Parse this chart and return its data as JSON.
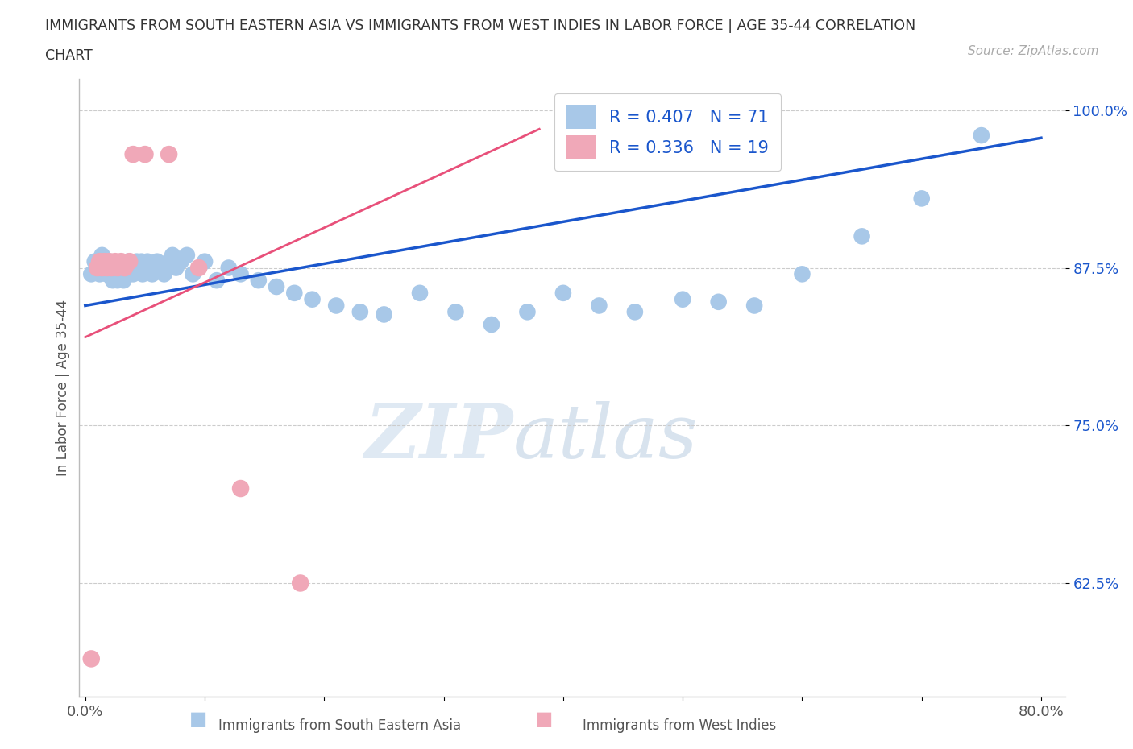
{
  "title_line1": "IMMIGRANTS FROM SOUTH EASTERN ASIA VS IMMIGRANTS FROM WEST INDIES IN LABOR FORCE | AGE 35-44 CORRELATION",
  "title_line2": "CHART",
  "source_text": "Source: ZipAtlas.com",
  "ylabel": "In Labor Force | Age 35-44",
  "xlim": [
    -0.005,
    0.82
  ],
  "ylim": [
    0.535,
    1.025
  ],
  "xtick_positions": [
    0.0,
    0.1,
    0.2,
    0.3,
    0.4,
    0.5,
    0.6,
    0.7,
    0.8
  ],
  "xticklabels": [
    "0.0%",
    "",
    "",
    "",
    "",
    "",
    "",
    "",
    "80.0%"
  ],
  "ytick_positions": [
    0.625,
    0.75,
    0.875,
    1.0
  ],
  "ytick_labels": [
    "62.5%",
    "75.0%",
    "87.5%",
    "100.0%"
  ],
  "blue_color": "#a8c8e8",
  "pink_color": "#f0a8b8",
  "blue_line_color": "#1a56cc",
  "pink_line_color": "#e8507a",
  "legend_text_color": "#1a56cc",
  "watermark_zip": "ZIP",
  "watermark_atlas": "atlas",
  "blue_x": [
    0.005,
    0.008,
    0.01,
    0.012,
    0.014,
    0.015,
    0.017,
    0.018,
    0.019,
    0.02,
    0.021,
    0.022,
    0.023,
    0.024,
    0.025,
    0.026,
    0.027,
    0.028,
    0.03,
    0.031,
    0.032,
    0.034,
    0.035,
    0.036,
    0.038,
    0.04,
    0.041,
    0.043,
    0.045,
    0.047,
    0.048,
    0.05,
    0.052,
    0.054,
    0.056,
    0.058,
    0.06,
    0.063,
    0.066,
    0.07,
    0.073,
    0.076,
    0.08,
    0.085,
    0.09,
    0.095,
    0.1,
    0.11,
    0.12,
    0.13,
    0.145,
    0.16,
    0.175,
    0.19,
    0.21,
    0.23,
    0.25,
    0.28,
    0.31,
    0.34,
    0.37,
    0.4,
    0.43,
    0.46,
    0.5,
    0.53,
    0.56,
    0.6,
    0.65,
    0.7,
    0.75
  ],
  "blue_y": [
    0.87,
    0.88,
    0.875,
    0.87,
    0.885,
    0.88,
    0.875,
    0.87,
    0.875,
    0.88,
    0.875,
    0.87,
    0.865,
    0.875,
    0.87,
    0.875,
    0.865,
    0.87,
    0.875,
    0.87,
    0.865,
    0.875,
    0.87,
    0.88,
    0.875,
    0.87,
    0.875,
    0.88,
    0.875,
    0.88,
    0.87,
    0.875,
    0.88,
    0.875,
    0.87,
    0.875,
    0.88,
    0.875,
    0.87,
    0.88,
    0.885,
    0.875,
    0.88,
    0.885,
    0.87,
    0.875,
    0.88,
    0.865,
    0.875,
    0.87,
    0.865,
    0.86,
    0.855,
    0.85,
    0.845,
    0.84,
    0.838,
    0.855,
    0.84,
    0.83,
    0.84,
    0.855,
    0.845,
    0.84,
    0.85,
    0.848,
    0.845,
    0.87,
    0.9,
    0.93,
    0.98
  ],
  "pink_x": [
    0.005,
    0.01,
    0.012,
    0.014,
    0.016,
    0.018,
    0.02,
    0.022,
    0.025,
    0.027,
    0.03,
    0.033,
    0.037,
    0.04,
    0.05,
    0.07,
    0.095,
    0.13,
    0.18
  ],
  "pink_y": [
    0.565,
    0.875,
    0.88,
    0.875,
    0.88,
    0.875,
    0.88,
    0.875,
    0.88,
    0.875,
    0.88,
    0.875,
    0.88,
    0.965,
    0.965,
    0.965,
    0.875,
    0.7,
    0.625
  ],
  "blue_line_x0": 0.0,
  "blue_line_x1": 0.8,
  "blue_line_y0": 0.845,
  "blue_line_y1": 0.978,
  "pink_line_x0": 0.0,
  "pink_line_x1": 0.38,
  "pink_line_y0": 0.82,
  "pink_line_y1": 0.985
}
